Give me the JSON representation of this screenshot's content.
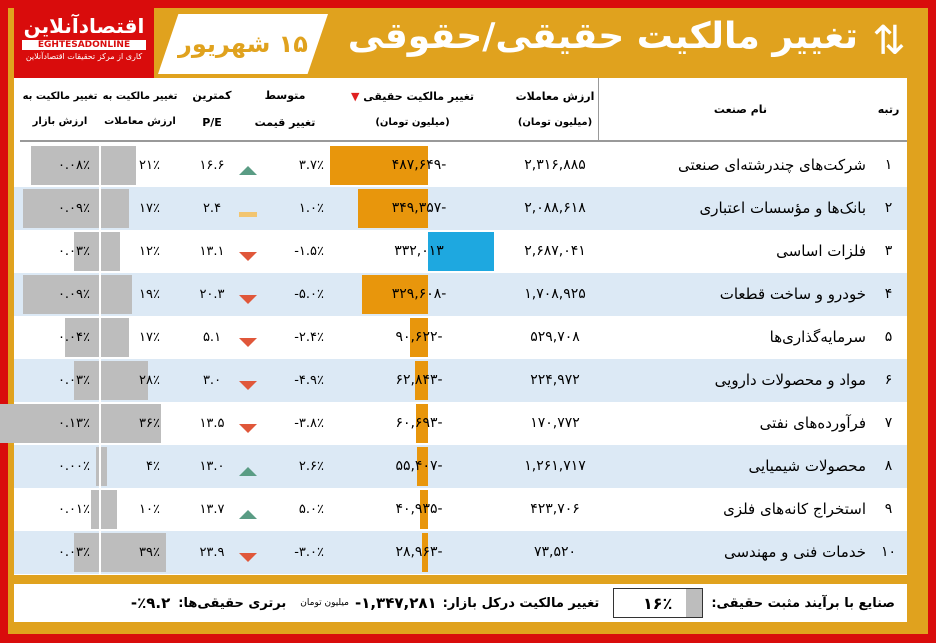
{
  "header": {
    "logo_fa": "اقتصادآنلاین",
    "logo_en": "EGHTESADONLINE",
    "logo_sub": "کاری از مرکز تحقیقات اقتصادآنلاین",
    "date": "۱۵ شهریور",
    "title": "تغییر مالکیت حقیقی/حقوقی",
    "icon": "person-transfer-icon"
  },
  "columns": {
    "rank": "رتبه",
    "name": "نام صنعت",
    "trade_value": "ارزش معاملات",
    "trade_value_unit": "(میلیون تومان)",
    "real_change": "تغییر مالکیت حقیقی",
    "real_change_unit": "(میلیون تومان)",
    "avg_change_1": "متوسط",
    "avg_change_2": "تغییر قیمت",
    "pe_1": "کمترین",
    "pe_2": "P/E",
    "trade_share_1": "تغییر مالکیت به",
    "trade_share_2": "ارزش معاملات",
    "mkt_share_1": "تغییر مالکیت به",
    "mkt_share_2": "ارزش بازار"
  },
  "colors": {
    "negative": "#e8960c",
    "positive": "#1ea8e0",
    "up": "#5a9c84",
    "down": "#e0573a",
    "flat": "#f2c570",
    "share_bar": "#bdbdbd",
    "alt_row": "#dce9f5"
  },
  "rows": [
    {
      "rank": "۱",
      "name": "شرکت‌های چندرشته‌ای صنعتی",
      "trade_value": "۲,۳۱۶,۸۸۵",
      "real_change": "-۴۸۷,۶۴۹",
      "real_value": -487649,
      "avg_change": "۳.۷٪",
      "trend": "up",
      "pe": "۱۶.۶",
      "trade_share": "۲۱٪",
      "trade_share_value": 21,
      "mkt_share": "۰.۰۸٪",
      "mkt_share_value": 0.08
    },
    {
      "rank": "۲",
      "name": "بانک‌ها و مؤسسات اعتباری",
      "trade_value": "۲,۰۸۸,۶۱۸",
      "real_change": "-۳۴۹,۳۵۷",
      "real_value": -349357,
      "avg_change": "۱.۰٪",
      "trend": "flat",
      "pe": "۲.۴",
      "trade_share": "۱۷٪",
      "trade_share_value": 17,
      "mkt_share": "۰.۰۹٪",
      "mkt_share_value": 0.09
    },
    {
      "rank": "۳",
      "name": "فلزات اساسی",
      "trade_value": "۲,۶۸۷,۰۴۱",
      "real_change": "۳۳۲,۰۱۳",
      "real_value": 332013,
      "avg_change": "-۱.۵٪",
      "trend": "down",
      "pe": "۱۳.۱",
      "trade_share": "۱۲٪",
      "trade_share_value": 12,
      "mkt_share": "۰.۰۳٪",
      "mkt_share_value": 0.03
    },
    {
      "rank": "۴",
      "name": "خودرو و ساخت قطعات",
      "trade_value": "۱,۷۰۸,۹۲۵",
      "real_change": "-۳۲۹,۶۰۸",
      "real_value": -329608,
      "avg_change": "-۵.۰٪",
      "trend": "down",
      "pe": "۲۰.۳",
      "trade_share": "۱۹٪",
      "trade_share_value": 19,
      "mkt_share": "۰.۰۹٪",
      "mkt_share_value": 0.09
    },
    {
      "rank": "۵",
      "name": "سرمایه‌گذاری‌ها",
      "trade_value": "۵۲۹,۷۰۸",
      "real_change": "-۹۰,۶۲۲",
      "real_value": -90622,
      "avg_change": "-۲.۴٪",
      "trend": "down",
      "pe": "۵.۱",
      "trade_share": "۱۷٪",
      "trade_share_value": 17,
      "mkt_share": "۰.۰۴٪",
      "mkt_share_value": 0.04
    },
    {
      "rank": "۶",
      "name": "مواد و محصولات دارویی",
      "trade_value": "۲۲۴,۹۷۲",
      "real_change": "-۶۲,۸۴۳",
      "real_value": -62843,
      "avg_change": "-۴.۹٪",
      "trend": "down",
      "pe": "۳.۰",
      "trade_share": "۲۸٪",
      "trade_share_value": 28,
      "mkt_share": "۰.۰۳٪",
      "mkt_share_value": 0.03
    },
    {
      "rank": "۷",
      "name": "فرآورده‌های نفتی",
      "trade_value": "۱۷۰,۷۷۲",
      "real_change": "-۶۰,۶۹۳",
      "real_value": -60693,
      "avg_change": "-۳.۸٪",
      "trend": "down",
      "pe": "۱۳.۵",
      "trade_share": "۳۶٪",
      "trade_share_value": 36,
      "mkt_share": "۰.۱۳٪",
      "mkt_share_value": 0.13
    },
    {
      "rank": "۸",
      "name": "محصولات شیمیایی",
      "trade_value": "۱,۲۶۱,۷۱۷",
      "real_change": "-۵۵,۴۰۷",
      "real_value": -55407,
      "avg_change": "۲.۶٪",
      "trend": "up",
      "pe": "۱۳.۰",
      "trade_share": "۴٪",
      "trade_share_value": 4,
      "mkt_share": "۰.۰۰٪",
      "mkt_share_value": 0.0
    },
    {
      "rank": "۹",
      "name": "استخراج کانه‌های فلزی",
      "trade_value": "۴۲۳,۷۰۶",
      "real_change": "-۴۰,۹۳۵",
      "real_value": -40935,
      "avg_change": "۵.۰٪",
      "trend": "up",
      "pe": "۱۳.۷",
      "trade_share": "۱۰٪",
      "trade_share_value": 10,
      "mkt_share": "۰.۰۱٪",
      "mkt_share_value": 0.01
    },
    {
      "rank": "۱۰",
      "name": "خدمات فنی و مهندسی",
      "trade_value": "۷۳,۵۲۰",
      "real_change": "-۲۸,۹۶۳",
      "real_value": -28963,
      "avg_change": "-۳.۰٪",
      "trend": "down",
      "pe": "۲۳.۹",
      "trade_share": "۳۹٪",
      "trade_share_value": 39,
      "mkt_share": "۰.۰۳٪",
      "mkt_share_value": 0.03
    }
  ],
  "footer": {
    "positive_label": "صنایع با برآیند مثبت حقیقی:",
    "positive_value": "۱۶٪",
    "positive_fraction": 0.16,
    "market_label": "تغییر مالکیت درکل بازار:",
    "market_value": "۱,۳۴۷,۲۸۱-",
    "market_unit": "میلیون تومان",
    "real_pref_label": "برتری حقیقی‌ها:",
    "real_pref_value": "٪۹.۲-"
  }
}
